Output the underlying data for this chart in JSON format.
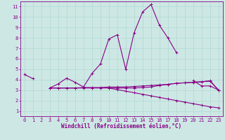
{
  "background_color": "#cde8e4",
  "grid_color": "#b0d8d0",
  "line_color": "#880088",
  "marker": "+",
  "xlabel": "Windchill (Refroidissement éolien,°C)",
  "xlabel_fontsize": 5.5,
  "tick_fontsize": 5,
  "xlim": [
    -0.5,
    23.5
  ],
  "ylim": [
    0.5,
    11.5
  ],
  "xticks": [
    0,
    1,
    2,
    3,
    4,
    5,
    6,
    7,
    8,
    9,
    10,
    11,
    12,
    13,
    14,
    15,
    16,
    17,
    18,
    19,
    20,
    21,
    22,
    23
  ],
  "yticks": [
    1,
    2,
    3,
    4,
    5,
    6,
    7,
    8,
    9,
    10,
    11
  ],
  "line1": [
    4.5,
    4.1,
    null,
    3.2,
    3.6,
    4.15,
    3.75,
    3.3,
    4.6,
    5.5,
    7.9,
    8.3,
    5.0,
    8.5,
    10.5,
    11.2,
    9.2,
    8.0,
    6.6,
    null,
    3.9,
    3.4,
    3.4,
    3.0
  ],
  "line2": [
    null,
    null,
    null,
    3.2,
    3.2,
    3.2,
    3.2,
    3.2,
    3.2,
    3.2,
    3.2,
    3.2,
    3.2,
    3.2,
    3.25,
    3.3,
    3.45,
    3.55,
    3.65,
    3.7,
    3.75,
    3.8,
    3.9,
    3.0
  ],
  "line3": [
    null,
    null,
    null,
    3.2,
    3.2,
    3.2,
    3.2,
    3.25,
    3.25,
    3.25,
    3.3,
    3.3,
    3.3,
    3.35,
    3.4,
    3.45,
    3.5,
    3.55,
    3.65,
    3.7,
    3.75,
    3.8,
    3.85,
    3.0
  ],
  "line4": [
    null,
    null,
    null,
    null,
    null,
    null,
    null,
    null,
    null,
    null,
    3.2,
    3.05,
    2.9,
    2.75,
    2.6,
    2.45,
    2.3,
    2.15,
    2.0,
    1.85,
    1.7,
    1.55,
    1.4,
    1.3
  ]
}
